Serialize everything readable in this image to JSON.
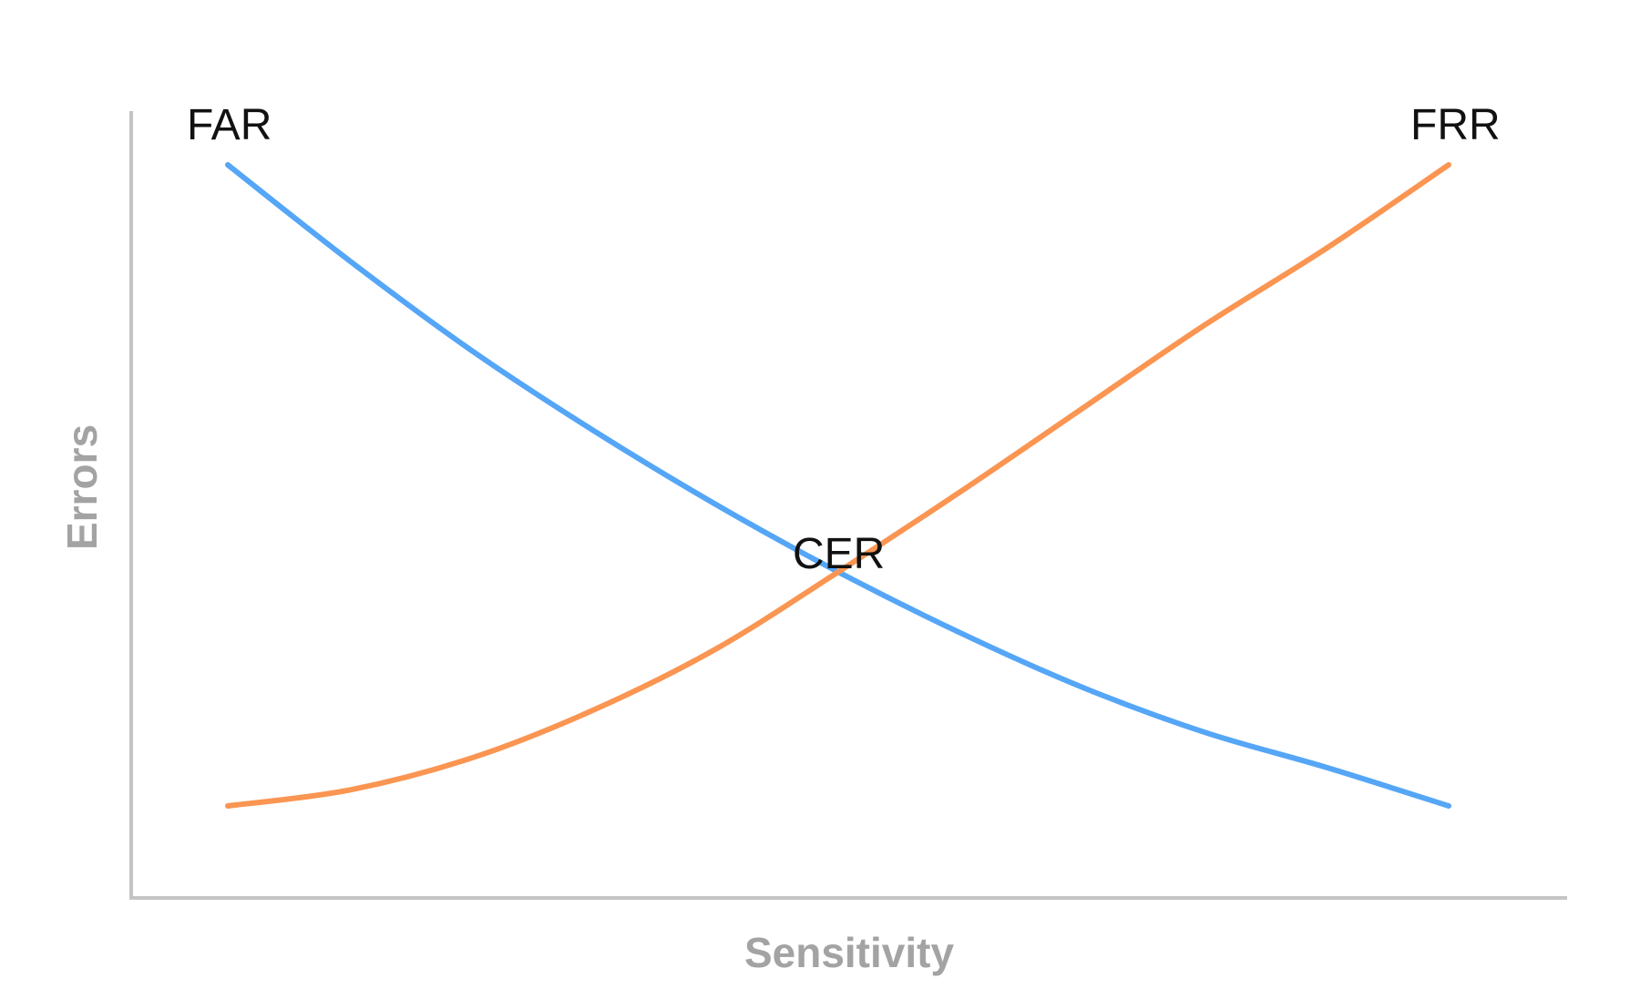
{
  "chart_data": {
    "type": "line",
    "title": "",
    "xlabel": "Sensitivity",
    "ylabel": "Errors",
    "xlim": [
      0,
      1
    ],
    "ylim": [
      0,
      1
    ],
    "grid": false,
    "legend": "none",
    "series": [
      {
        "name": "FAR",
        "color": "#55a6f6",
        "points": [
          [
            0.0,
            1.0
          ],
          [
            0.1,
            0.85
          ],
          [
            0.2,
            0.71
          ],
          [
            0.3,
            0.585
          ],
          [
            0.4,
            0.47
          ],
          [
            0.5,
            0.365
          ],
          [
            0.6,
            0.27
          ],
          [
            0.7,
            0.185
          ],
          [
            0.8,
            0.115
          ],
          [
            0.9,
            0.06
          ],
          [
            1.0,
            0.0
          ]
        ]
      },
      {
        "name": "FRR",
        "color": "#fa9552",
        "points": [
          [
            0.0,
            0.0
          ],
          [
            0.1,
            0.025
          ],
          [
            0.2,
            0.075
          ],
          [
            0.3,
            0.15
          ],
          [
            0.4,
            0.245
          ],
          [
            0.5,
            0.365
          ],
          [
            0.6,
            0.49
          ],
          [
            0.7,
            0.62
          ],
          [
            0.8,
            0.75
          ],
          [
            0.9,
            0.87
          ],
          [
            1.0,
            1.0
          ]
        ]
      }
    ],
    "annotations": [
      {
        "text": "FAR",
        "at": "FAR"
      },
      {
        "text": "FRR",
        "at": "FRR"
      },
      {
        "text": "CER",
        "at": "intersection"
      }
    ]
  }
}
